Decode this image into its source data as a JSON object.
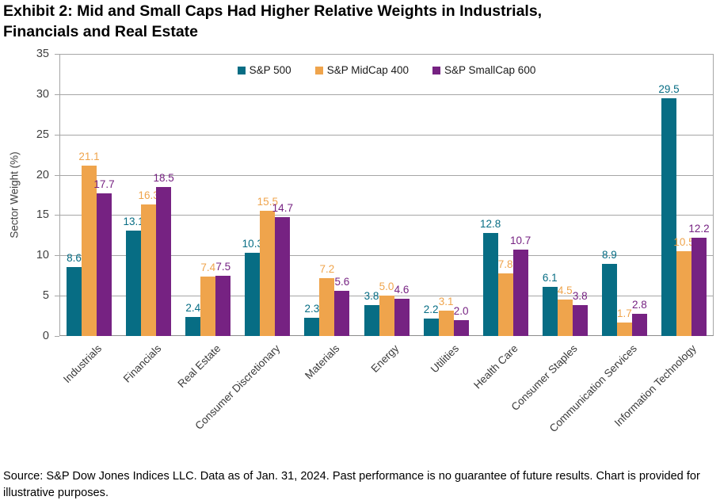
{
  "page": {
    "title": "Exhibit 2: Mid and Small Caps Had Higher Relative Weights in Industrials,\nFinancials and Real Estate",
    "source_note": "Source: S&P Dow Jones Indices LLC. Data as of Jan. 31, 2024. Past performance is no guarantee of future results. Chart is provided for illustrative purposes."
  },
  "chart_data": {
    "type": "bar",
    "title": "Exhibit 2: Mid and Small Caps Had Higher Relative Weights in Industrials, Financials and Real Estate",
    "ylabel": "Sector Weight (%)",
    "ylim": [
      0,
      35
    ],
    "yticks": [
      0,
      5,
      10,
      15,
      20,
      25,
      30,
      35
    ],
    "grid": true,
    "legend_position": "top-center",
    "categories": [
      "Industrials",
      "Financials",
      "Real Estate",
      "Consumer Discretionary",
      "Materials",
      "Energy",
      "Utilities",
      "Health Care",
      "Consumer Staples",
      "Communication Services",
      "Information Technology"
    ],
    "series": [
      {
        "name": "S&P 500",
        "color": "#076D84",
        "values": [
          8.6,
          13.1,
          2.4,
          10.3,
          2.3,
          3.8,
          2.2,
          12.8,
          6.1,
          8.9,
          29.5
        ]
      },
      {
        "name": "S&P MidCap 400",
        "color": "#EFA44C",
        "values": [
          21.1,
          16.3,
          7.4,
          15.5,
          7.2,
          5.0,
          3.1,
          7.8,
          4.5,
          1.7,
          10.5
        ]
      },
      {
        "name": "S&P SmallCap 600",
        "color": "#762282",
        "values": [
          17.7,
          18.5,
          7.5,
          14.7,
          5.6,
          4.6,
          2.0,
          10.7,
          3.8,
          2.8,
          12.2
        ]
      }
    ],
    "grid_color": "#A6A6A6",
    "axis_color": "#8C8C8C",
    "tick_label_color": "#404040"
  }
}
